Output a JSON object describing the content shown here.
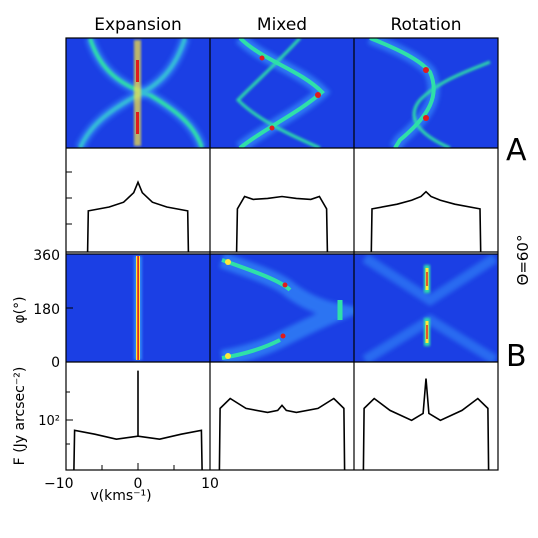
{
  "column_titles": [
    "Expansion",
    "Mixed",
    "Rotation"
  ],
  "row_labels": [
    "A",
    "B"
  ],
  "theta_label": "Θ=60°",
  "colors": {
    "map_background": "#1b3fe4",
    "map_low": "#3aa0ff",
    "map_mid": "#2fe0a8",
    "map_high": "#ffe83a",
    "map_peak": "#e01c1c",
    "spectrum_line": "#000000",
    "frame": "#000000"
  },
  "chart_data": {
    "type": "figure-grid",
    "panel_types": [
      "position-velocity map",
      "spectrum",
      "position-velocity map",
      "spectrum"
    ],
    "phi_axis": {
      "label": "φ(°)",
      "ticks": [
        "360",
        "180",
        "0"
      ],
      "range": [
        0,
        360
      ]
    },
    "velocity_axis": {
      "label": "v(kms⁻¹)",
      "ticks": [
        "−10",
        "0",
        "10"
      ],
      "range": [
        -10,
        10
      ]
    },
    "flux_axis": {
      "label": "F (Jy arcsec⁻²)",
      "ticks": [
        "10²"
      ]
    },
    "panels": [
      {
        "row": "A",
        "column": "Expansion",
        "kind": "map",
        "bright_curves": "sine-like loop with vertical streak at v=0"
      },
      {
        "row": "A",
        "column": "Mixed",
        "kind": "map",
        "bright_curves": "tilted sine-like loop"
      },
      {
        "row": "A",
        "column": "Rotation",
        "kind": "map",
        "bright_curves": "diagonal sine-like loop"
      },
      {
        "row": "B",
        "column": "Expansion",
        "kind": "map",
        "bright_curves": "single vertical line at v=0"
      },
      {
        "row": "B",
        "column": "Mixed",
        "kind": "map",
        "bright_curves": "S-shaped band between edges"
      },
      {
        "row": "B",
        "column": "Rotation",
        "kind": "map",
        "bright_curves": "two short bars at v=0"
      }
    ],
    "spectra": {
      "A": {
        "Expansion": {
          "x": [
            -7,
            -6.9,
            -4,
            -2,
            -0.6,
            0,
            0.6,
            2,
            4,
            6.9,
            7
          ],
          "y": [
            0,
            0.43,
            0.47,
            0.52,
            0.62,
            0.73,
            0.62,
            0.52,
            0.47,
            0.43,
            0
          ]
        },
        "Mixed": {
          "x": [
            -6.3,
            -6.2,
            -5.2,
            -4,
            -2,
            0,
            2,
            4,
            5.2,
            6.2,
            6.3
          ],
          "y": [
            0,
            0.45,
            0.58,
            0.55,
            0.56,
            0.58,
            0.56,
            0.55,
            0.58,
            0.45,
            0
          ]
        },
        "Rotation": {
          "x": [
            -7.6,
            -7.5,
            -4,
            -2,
            -0.7,
            0,
            0.7,
            2,
            4,
            7.5,
            7.6
          ],
          "y": [
            0,
            0.45,
            0.5,
            0.54,
            0.58,
            0.63,
            0.58,
            0.54,
            0.5,
            0.45,
            0
          ]
        }
      },
      "B": {
        "Expansion": {
          "x": [
            -8.9,
            -8.8,
            -6,
            -3,
            -1,
            0,
            0,
            0,
            1,
            3,
            6,
            8.8,
            8.9
          ],
          "y": [
            0,
            0.4,
            0.36,
            0.31,
            0.33,
            0.34,
            1.0,
            0.34,
            0.33,
            0.31,
            0.36,
            0.4,
            0
          ]
        },
        "Mixed": {
          "x": [
            -8.7,
            -8.6,
            -7.2,
            -5,
            -2,
            -0.6,
            0,
            0.6,
            2,
            5,
            7.2,
            8.6,
            8.7
          ],
          "y": [
            0,
            0.62,
            0.72,
            0.62,
            0.58,
            0.6,
            0.65,
            0.6,
            0.58,
            0.62,
            0.72,
            0.62,
            0
          ]
        },
        "Rotation": {
          "x": [
            -8.7,
            -8.6,
            -7.2,
            -5,
            -2,
            -0.4,
            0,
            0.4,
            2,
            5,
            7.2,
            8.6,
            8.7
          ],
          "y": [
            0,
            0.62,
            0.72,
            0.6,
            0.5,
            0.57,
            0.92,
            0.57,
            0.5,
            0.6,
            0.72,
            0.62,
            0
          ]
        }
      }
    }
  }
}
